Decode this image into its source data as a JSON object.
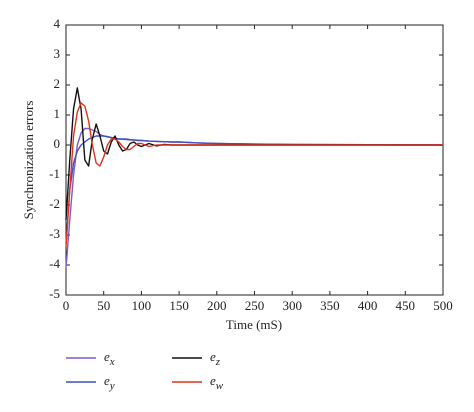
{
  "chart_data": {
    "type": "line",
    "xlabel": "Time (mS)",
    "ylabel": "Synchronization errors",
    "x": [
      0,
      5,
      10,
      15,
      20,
      25,
      30,
      35,
      40,
      45,
      50,
      55,
      60,
      65,
      70,
      75,
      80,
      85,
      90,
      95,
      100,
      110,
      120,
      130,
      140,
      150,
      175,
      200,
      250,
      300,
      400,
      500
    ],
    "series": [
      {
        "name": "ex",
        "color": "#7a5cc8",
        "values": [
          -4.1,
          -2.5,
          -1,
          0,
          0.4,
          0.55,
          0.55,
          0.5,
          0.45,
          0.35,
          0.3,
          0.27,
          0.25,
          0.22,
          0.2,
          0.19,
          0.18,
          0.17,
          0.16,
          0.15,
          0.15,
          0.13,
          0.12,
          0.11,
          0.1,
          0.1,
          0.07,
          0.05,
          0.03,
          0.02,
          0.01,
          0
        ]
      },
      {
        "name": "ey",
        "color": "#3f51c0",
        "values": [
          -3.3,
          -1.5,
          -0.6,
          -0.2,
          0,
          0.1,
          0.2,
          0.25,
          0.3,
          0.3,
          0.3,
          0.28,
          0.25,
          0.22,
          0.2,
          0.2,
          0.2,
          0.18,
          0.17,
          0.16,
          0.15,
          0.13,
          0.12,
          0.11,
          0.1,
          0.1,
          0.07,
          0.05,
          0.03,
          0.02,
          0.01,
          0
        ]
      },
      {
        "name": "ez",
        "color": "#111111",
        "values": [
          -2.5,
          -0.5,
          1.2,
          1.9,
          1.2,
          -0.5,
          -0.7,
          0.2,
          0.7,
          0.3,
          -0.2,
          -0.3,
          0.1,
          0.3,
          0,
          -0.2,
          -0.15,
          0.05,
          0.1,
          0,
          -0.05,
          0.05,
          -0.03,
          0.02,
          0,
          0,
          0,
          0,
          0,
          0,
          0,
          0
        ]
      },
      {
        "name": "ew",
        "color": "#e2301c",
        "values": [
          -3.4,
          -1.5,
          0.3,
          1.1,
          1.4,
          1.3,
          0.8,
          0,
          -0.6,
          -0.7,
          -0.4,
          0,
          0.2,
          0.2,
          0.1,
          -0.05,
          -0.15,
          -0.15,
          -0.05,
          0.05,
          0.05,
          -0.05,
          0,
          0,
          0,
          0,
          0,
          0,
          0,
          0,
          0,
          0
        ]
      }
    ],
    "xlim": [
      0,
      500
    ],
    "xticks": [
      0,
      50,
      100,
      150,
      200,
      250,
      300,
      350,
      400,
      450,
      500
    ],
    "ylim": [
      -5,
      4
    ],
    "yticks": [
      -5,
      -4,
      -3,
      -2,
      -1,
      0,
      1,
      2,
      3,
      4
    ]
  }
}
